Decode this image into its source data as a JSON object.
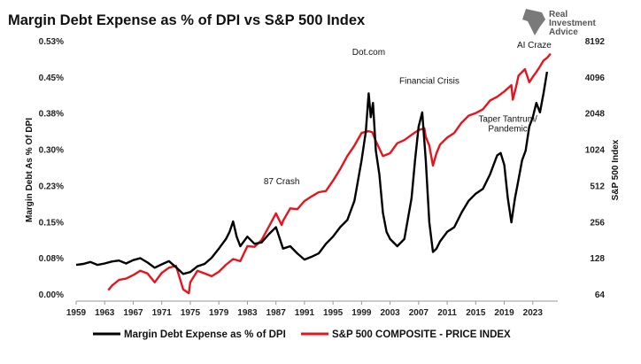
{
  "chart_data": {
    "type": "line",
    "title": "Margin Debt Expense as % of DPI vs S&P 500 Index",
    "ylabel_left": "Margin Debt As % Of DPI",
    "ylabel_right": "S&P 500 Index",
    "xlim": [
      1959,
      2026.5
    ],
    "ylim_left": [
      0,
      0.53
    ],
    "ylim_right": [
      64,
      8192
    ],
    "right_scale": "log2",
    "x_ticks": [
      "1959",
      "1963",
      "1967",
      "1971",
      "1975",
      "1979",
      "1983",
      "1987",
      "1991",
      "1995",
      "1999",
      "2003",
      "2007",
      "2011",
      "2015",
      "2019",
      "2023"
    ],
    "y_left_ticks": [
      "0.00%",
      "0.08%",
      "0.15%",
      "0.23%",
      "0.30%",
      "0.38%",
      "0.45%",
      "0.53%"
    ],
    "y_left_tick_values": [
      0,
      0.0757,
      0.1514,
      0.2271,
      0.3029,
      0.3786,
      0.4543,
      0.53
    ],
    "y_right_ticks": [
      "64",
      "128",
      "256",
      "512",
      "1024",
      "2048",
      "4096",
      "8192"
    ],
    "y_right_tick_values": [
      64,
      128,
      256,
      512,
      1024,
      2048,
      4096,
      8192
    ],
    "grid": false,
    "legend_position": "bottom",
    "brand": [
      "Real",
      "Investment",
      "Advice"
    ],
    "series": [
      {
        "name": "Margin Debt Expense as % of DPI",
        "color": "#000000",
        "axis": "left",
        "points": [
          [
            1959,
            0.061
          ],
          [
            1960,
            0.063
          ],
          [
            1961,
            0.067
          ],
          [
            1962,
            0.061
          ],
          [
            1963,
            0.064
          ],
          [
            1964,
            0.068
          ],
          [
            1965,
            0.07
          ],
          [
            1966,
            0.064
          ],
          [
            1967,
            0.071
          ],
          [
            1968,
            0.075
          ],
          [
            1969,
            0.066
          ],
          [
            1970,
            0.055
          ],
          [
            1971,
            0.062
          ],
          [
            1972,
            0.069
          ],
          [
            1973,
            0.056
          ],
          [
            1974,
            0.042
          ],
          [
            1975,
            0.046
          ],
          [
            1976,
            0.058
          ],
          [
            1977,
            0.063
          ],
          [
            1978,
            0.076
          ],
          [
            1979,
            0.095
          ],
          [
            1980,
            0.115
          ],
          [
            1980.5,
            0.13
          ],
          [
            1981,
            0.152
          ],
          [
            1981.5,
            0.12
          ],
          [
            1982,
            0.1
          ],
          [
            1983,
            0.12
          ],
          [
            1984,
            0.105
          ],
          [
            1985,
            0.108
          ],
          [
            1986,
            0.125
          ],
          [
            1987,
            0.14
          ],
          [
            1988,
            0.095
          ],
          [
            1989,
            0.1
          ],
          [
            1990,
            0.085
          ],
          [
            1991,
            0.072
          ],
          [
            1992,
            0.078
          ],
          [
            1993,
            0.085
          ],
          [
            1994,
            0.105
          ],
          [
            1995,
            0.12
          ],
          [
            1996,
            0.14
          ],
          [
            1997,
            0.155
          ],
          [
            1998,
            0.195
          ],
          [
            1999,
            0.28
          ],
          [
            1999.6,
            0.34
          ],
          [
            2000,
            0.42
          ],
          [
            2000.3,
            0.37
          ],
          [
            2000.6,
            0.4
          ],
          [
            2001,
            0.3
          ],
          [
            2001.5,
            0.25
          ],
          [
            2002,
            0.17
          ],
          [
            2002.5,
            0.13
          ],
          [
            2003,
            0.115
          ],
          [
            2004,
            0.1
          ],
          [
            2005,
            0.115
          ],
          [
            2006,
            0.2
          ],
          [
            2006.5,
            0.28
          ],
          [
            2007,
            0.35
          ],
          [
            2007.5,
            0.38
          ],
          [
            2008,
            0.28
          ],
          [
            2008.5,
            0.15
          ],
          [
            2009,
            0.088
          ],
          [
            2009.5,
            0.095
          ],
          [
            2010,
            0.11
          ],
          [
            2011,
            0.13
          ],
          [
            2012,
            0.14
          ],
          [
            2013,
            0.17
          ],
          [
            2014,
            0.195
          ],
          [
            2015,
            0.21
          ],
          [
            2016,
            0.22
          ],
          [
            2017,
            0.25
          ],
          [
            2018,
            0.29
          ],
          [
            2018.5,
            0.295
          ],
          [
            2019,
            0.27
          ],
          [
            2019.5,
            0.2
          ],
          [
            2020,
            0.15
          ],
          [
            2020.5,
            0.2
          ],
          [
            2021,
            0.24
          ],
          [
            2021.5,
            0.28
          ],
          [
            2022,
            0.3
          ],
          [
            2022.5,
            0.35
          ],
          [
            2023,
            0.37
          ],
          [
            2023.5,
            0.4
          ],
          [
            2024,
            0.38
          ],
          [
            2024.5,
            0.42
          ],
          [
            2025,
            0.465
          ]
        ]
      },
      {
        "name": "S&P 500 COMPOSITE - PRICE INDEX",
        "color": "#e8141b",
        "axis": "right",
        "points": [
          [
            1963.5,
            69
          ],
          [
            1964,
            75
          ],
          [
            1965,
            84
          ],
          [
            1966,
            86
          ],
          [
            1967,
            92
          ],
          [
            1968,
            100
          ],
          [
            1969,
            95
          ],
          [
            1970,
            80
          ],
          [
            1971,
            96
          ],
          [
            1972,
            106
          ],
          [
            1973,
            110
          ],
          [
            1974,
            70
          ],
          [
            1974.8,
            65
          ],
          [
            1975,
            80
          ],
          [
            1976,
            100
          ],
          [
            1977,
            95
          ],
          [
            1978,
            90
          ],
          [
            1979,
            98
          ],
          [
            1980,
            112
          ],
          [
            1981,
            125
          ],
          [
            1982,
            120
          ],
          [
            1983,
            160
          ],
          [
            1984,
            158
          ],
          [
            1985,
            180
          ],
          [
            1986,
            232
          ],
          [
            1987,
            300
          ],
          [
            1987.8,
            240
          ],
          [
            1988,
            260
          ],
          [
            1989,
            330
          ],
          [
            1990,
            325
          ],
          [
            1991,
            380
          ],
          [
            1992,
            415
          ],
          [
            1993,
            450
          ],
          [
            1994,
            460
          ],
          [
            1995,
            560
          ],
          [
            1996,
            700
          ],
          [
            1997,
            900
          ],
          [
            1998,
            1100
          ],
          [
            1999,
            1400
          ],
          [
            2000,
            1450
          ],
          [
            2000.5,
            1420
          ],
          [
            2001,
            1200
          ],
          [
            2002,
            900
          ],
          [
            2003,
            950
          ],
          [
            2004,
            1150
          ],
          [
            2005,
            1220
          ],
          [
            2006,
            1350
          ],
          [
            2007,
            1480
          ],
          [
            2007.8,
            1530
          ],
          [
            2008,
            1300
          ],
          [
            2008.5,
            1100
          ],
          [
            2009,
            750
          ],
          [
            2009.5,
            950
          ],
          [
            2010,
            1120
          ],
          [
            2011,
            1280
          ],
          [
            2012,
            1400
          ],
          [
            2013,
            1700
          ],
          [
            2014,
            1950
          ],
          [
            2015,
            2050
          ],
          [
            2016,
            2200
          ],
          [
            2017,
            2600
          ],
          [
            2018,
            2800
          ],
          [
            2019,
            3100
          ],
          [
            2020,
            3500
          ],
          [
            2020.2,
            2650
          ],
          [
            2020.6,
            3300
          ],
          [
            2021,
            4200
          ],
          [
            2021.9,
            4750
          ],
          [
            2022.5,
            3700
          ],
          [
            2023,
            4100
          ],
          [
            2023.5,
            4500
          ],
          [
            2024,
            5000
          ],
          [
            2024.5,
            5600
          ],
          [
            2025,
            5900
          ],
          [
            2025.5,
            6400
          ]
        ]
      }
    ],
    "annotations": [
      {
        "text": "87 Crash",
        "x": 1987.8,
        "y": 0.23,
        "axis": "left"
      },
      {
        "text": "Dot.com",
        "x": 2000,
        "y": 0.5,
        "axis": "left"
      },
      {
        "text": "Financial Crisis",
        "x": 2008.5,
        "y": 0.44,
        "axis": "left"
      },
      {
        "text": "Taper Tantrum/",
        "x": 2019.5,
        "y": 0.36,
        "axis": "left"
      },
      {
        "text": "Pandemic",
        "x": 2019.5,
        "y": 0.34,
        "axis": "left"
      },
      {
        "text": "AI Craze",
        "x": 2023.2,
        "y": 0.515,
        "axis": "left"
      }
    ]
  }
}
